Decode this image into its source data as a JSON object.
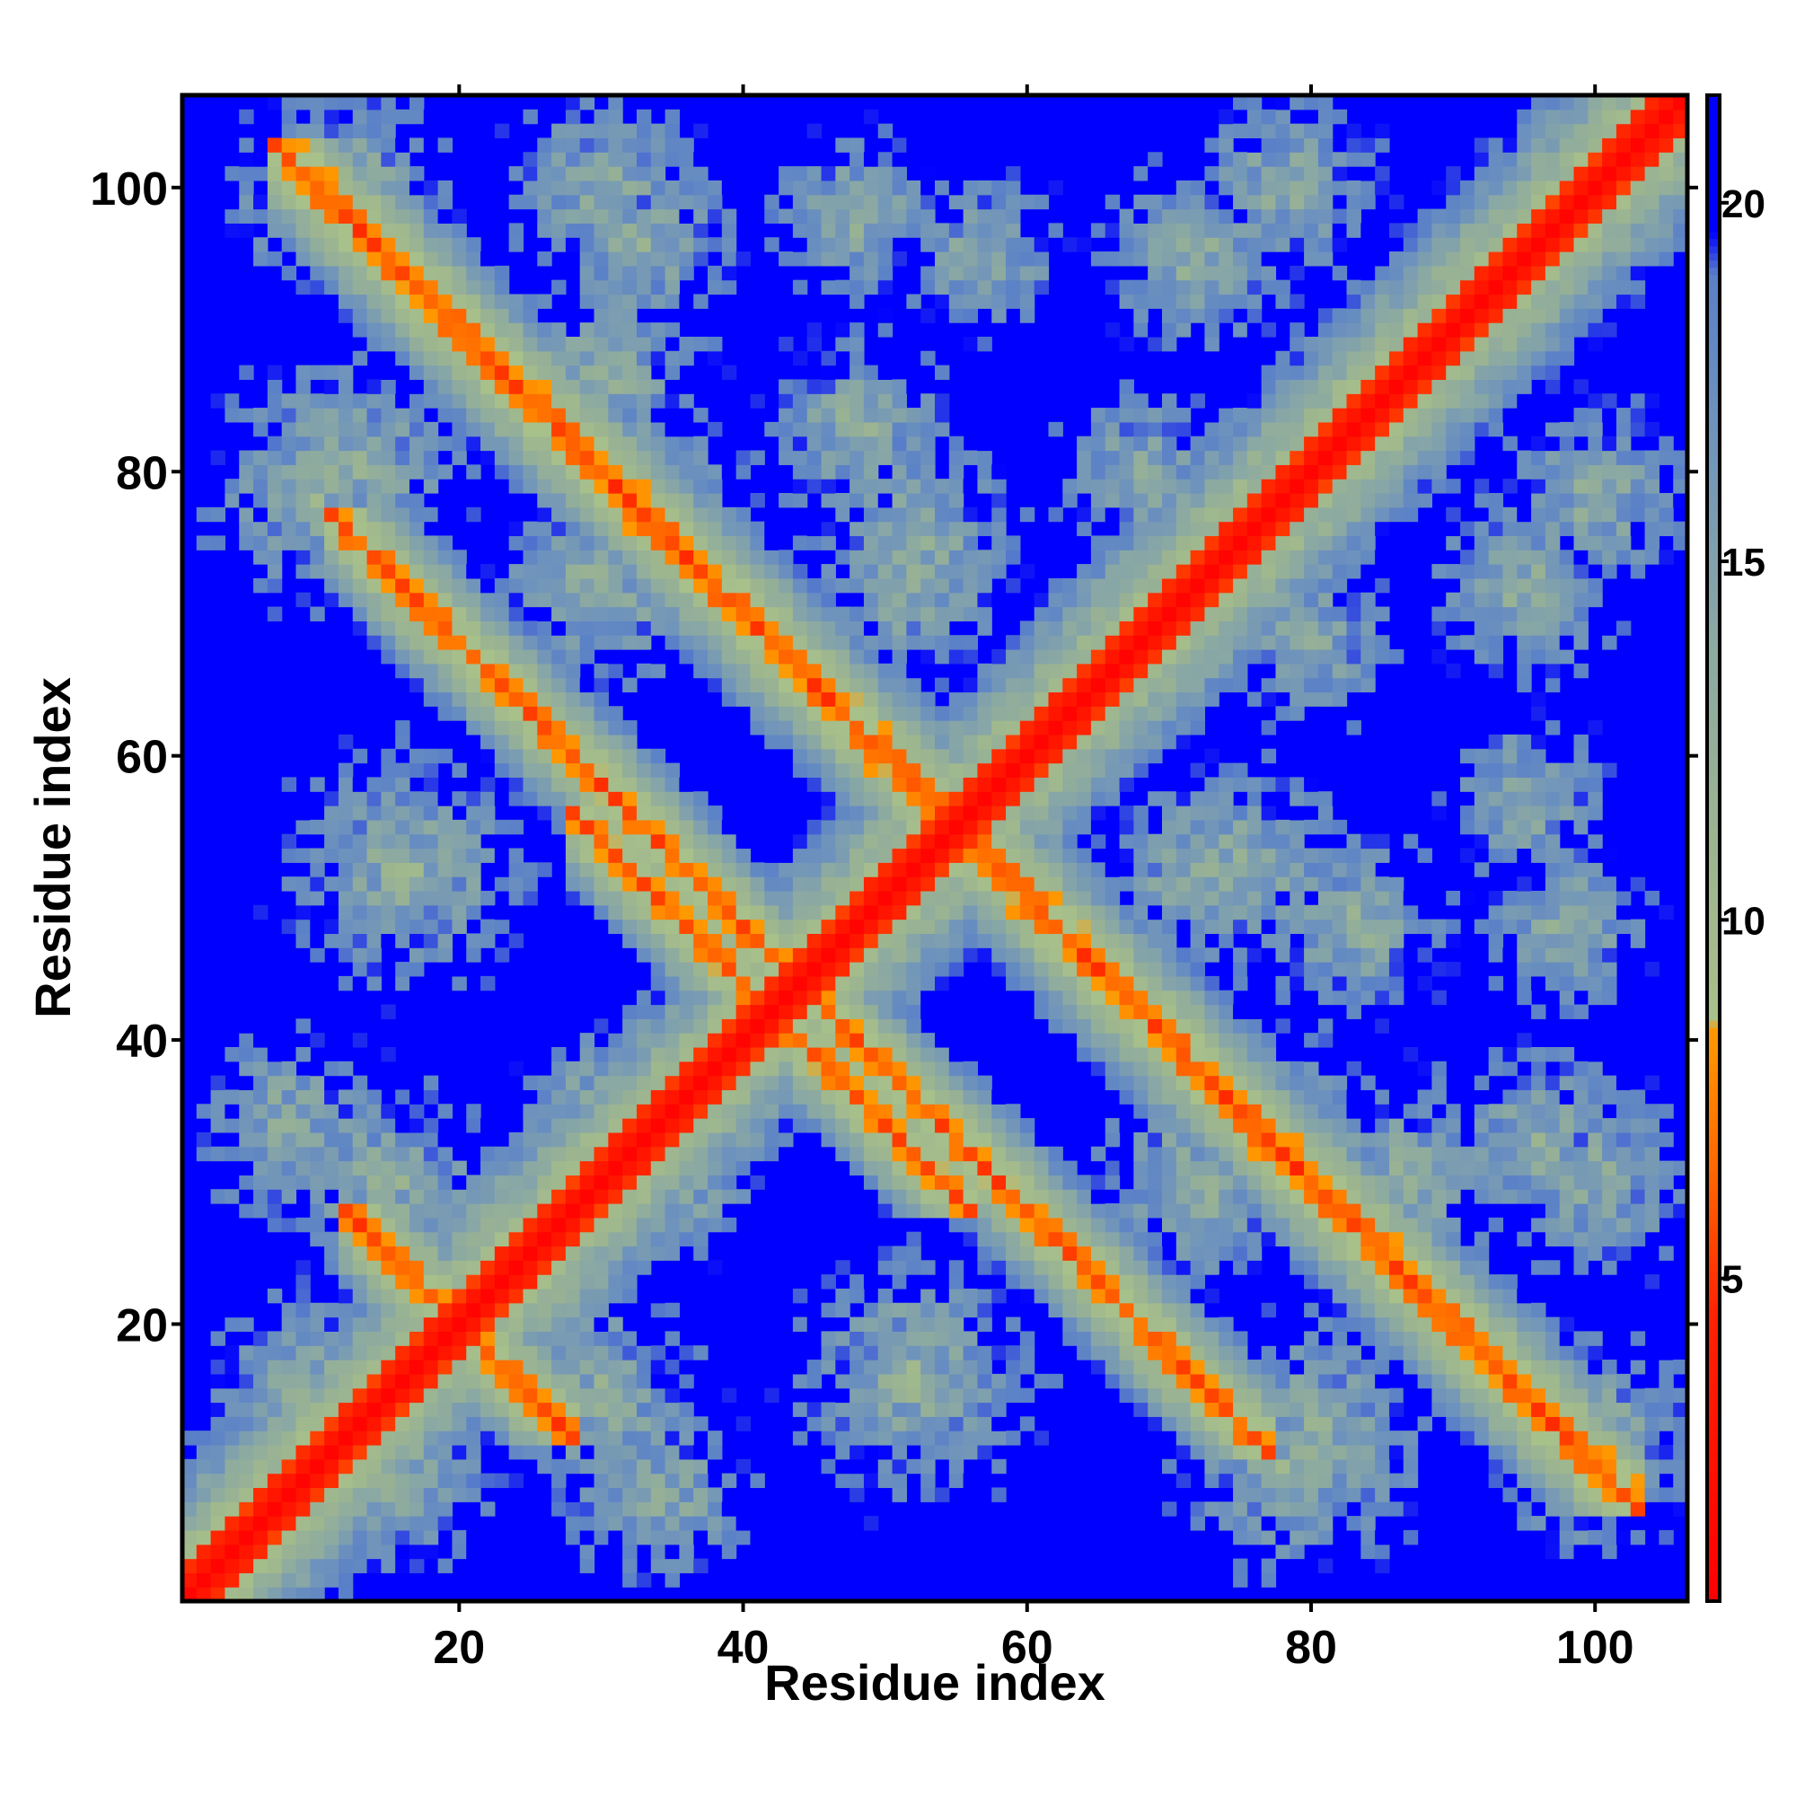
{
  "chart_data": {
    "type": "heatmap",
    "title": "",
    "xlabel": "Residue index",
    "ylabel": "Residue index",
    "n_residues": 106,
    "xlim": [
      1,
      106
    ],
    "ylim": [
      1,
      106
    ],
    "x_ticks": [
      20,
      40,
      60,
      80,
      100
    ],
    "y_ticks": [
      20,
      40,
      60,
      80,
      100
    ],
    "colorbar": {
      "range": [
        0.5,
        21.5
      ],
      "ticks": [
        5,
        10,
        15,
        20
      ],
      "stops": [
        {
          "value": 0.5,
          "color": "#ff0000"
        },
        {
          "value": 4.5,
          "color": "#ff2200"
        },
        {
          "value": 6.5,
          "color": "#ff6600"
        },
        {
          "value": 8.5,
          "color": "#ff9900"
        },
        {
          "value": 8.6,
          "color": "#a8c08a"
        },
        {
          "value": 11.0,
          "color": "#9db58f"
        },
        {
          "value": 14.0,
          "color": "#8aa8a4"
        },
        {
          "value": 17.0,
          "color": "#6d92bd"
        },
        {
          "value": 19.0,
          "color": "#5a80c8"
        },
        {
          "value": 19.6,
          "color": "#0000ff"
        },
        {
          "value": 21.5,
          "color": "#0000ff"
        }
      ]
    },
    "cutoff": 20,
    "contact_bands": [
      {
        "sum": 110,
        "i_start": 84,
        "i_end": 101,
        "width": 2.6,
        "d_min": 4.5
      },
      {
        "sum": 40,
        "i_start": 14,
        "i_end": 24,
        "width": 2.3,
        "d_min": 4.8
      },
      {
        "sum": 84,
        "i_start": 30,
        "i_end": 37,
        "width": 2.3,
        "d_min": 5.0
      },
      {
        "sum": 84,
        "i_start": 46,
        "i_end": 53,
        "width": 2.3,
        "d_min": 5.0
      },
      {
        "sum": 88,
        "i_start": 65,
        "i_end": 75,
        "width": 2.3,
        "d_min": 4.8
      }
    ],
    "blobs": [
      {
        "cx": 12,
        "cy": 100,
        "r": 8
      },
      {
        "cx": 33,
        "cy": 96,
        "r": 7
      },
      {
        "cx": 57,
        "cy": 95,
        "r": 6
      },
      {
        "cx": 78,
        "cy": 100,
        "r": 7
      },
      {
        "cx": 12,
        "cy": 80,
        "r": 9
      },
      {
        "cx": 33,
        "cy": 78,
        "r": 7
      },
      {
        "cx": 52,
        "cy": 75,
        "r": 8
      },
      {
        "cx": 68,
        "cy": 80,
        "r": 6
      },
      {
        "cx": 95,
        "cy": 72,
        "r": 7
      },
      {
        "cx": 16,
        "cy": 52,
        "r": 9
      },
      {
        "cx": 35,
        "cy": 30,
        "r": 6
      },
      {
        "cx": 72,
        "cy": 52,
        "r": 7
      },
      {
        "cx": 83,
        "cy": 48,
        "r": 7
      },
      {
        "cx": 98,
        "cy": 48,
        "r": 6
      },
      {
        "cx": 15,
        "cy": 30,
        "r": 8
      },
      {
        "cx": 15,
        "cy": 10,
        "r": 8
      },
      {
        "cx": 34,
        "cy": 8,
        "r": 7
      },
      {
        "cx": 52,
        "cy": 17,
        "r": 8
      },
      {
        "cx": 72,
        "cy": 30,
        "r": 8
      },
      {
        "cx": 86,
        "cy": 30,
        "r": 8
      },
      {
        "cx": 100,
        "cy": 30,
        "r": 7
      },
      {
        "cx": 78,
        "cy": 10,
        "r": 8
      },
      {
        "cx": 100,
        "cy": 10,
        "r": 7
      }
    ]
  }
}
